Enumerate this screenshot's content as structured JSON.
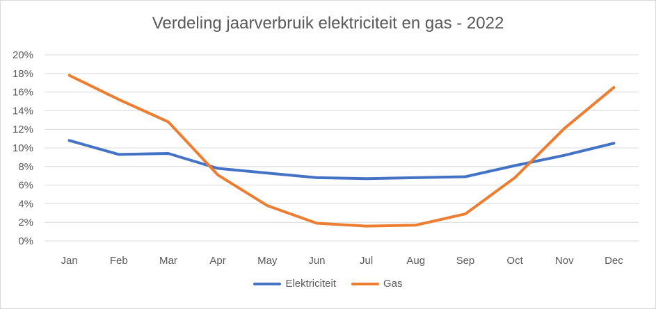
{
  "chart_data": {
    "type": "line",
    "title": "Verdeling jaarverbruik elektriciteit en gas - 2022",
    "xlabel": "",
    "ylabel": "",
    "categories": [
      "Jan",
      "Feb",
      "Mar",
      "Apr",
      "May",
      "Jun",
      "Jul",
      "Aug",
      "Sep",
      "Oct",
      "Nov",
      "Dec"
    ],
    "ylim": [
      0,
      20
    ],
    "yticks": [
      "0%",
      "2%",
      "4%",
      "6%",
      "8%",
      "10%",
      "12%",
      "14%",
      "16%",
      "18%",
      "20%"
    ],
    "grid": true,
    "legend": "bottom",
    "series": [
      {
        "name": "Elektriciteit",
        "color": "#4472c4",
        "values": [
          10.8,
          9.3,
          9.4,
          7.8,
          7.3,
          6.8,
          6.7,
          6.8,
          6.9,
          8.1,
          9.2,
          10.5
        ]
      },
      {
        "name": "Gas",
        "color": "#ed7d31",
        "values": [
          17.8,
          15.2,
          12.8,
          7.1,
          3.8,
          1.9,
          1.6,
          1.7,
          2.9,
          6.8,
          12.1,
          16.5
        ]
      }
    ]
  }
}
